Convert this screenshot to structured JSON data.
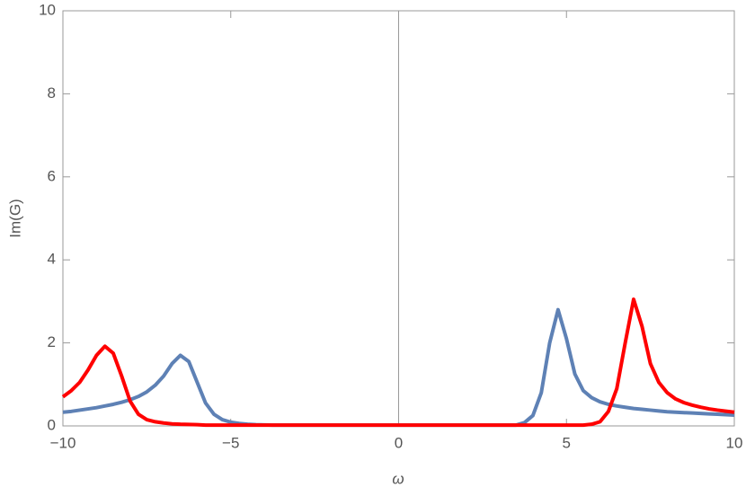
{
  "chart_data": {
    "type": "line",
    "xlabel": "ω",
    "ylabel": "Im(G)",
    "x": [
      -10,
      -9.75,
      -9.5,
      -9.25,
      -9,
      -8.75,
      -8.5,
      -8.25,
      -8,
      -7.75,
      -7.5,
      -7.25,
      -7,
      -6.75,
      -6.5,
      -6.25,
      -6,
      -5.75,
      -5.5,
      -5.25,
      -5,
      -4.75,
      -4.5,
      -4.25,
      -4,
      -3.75,
      -3.5,
      -3.25,
      -3,
      -2.75,
      -2.5,
      -2.25,
      -2,
      -1.75,
      -1.5,
      -1.25,
      -1,
      -0.75,
      -0.5,
      -0.25,
      0,
      0.25,
      0.5,
      0.75,
      1,
      1.25,
      1.5,
      1.75,
      2,
      2.25,
      2.5,
      2.75,
      3,
      3.25,
      3.5,
      3.75,
      4,
      4.25,
      4.5,
      4.75,
      5,
      5.25,
      5.5,
      5.75,
      6,
      6.25,
      6.5,
      6.75,
      7,
      7.25,
      7.5,
      7.75,
      8,
      8.25,
      8.5,
      8.75,
      9,
      9.25,
      9.5,
      9.75,
      10
    ],
    "series": [
      {
        "color": "#5e81b5",
        "values": [
          0.33,
          0.35,
          0.38,
          0.41,
          0.44,
          0.48,
          0.52,
          0.57,
          0.63,
          0.71,
          0.82,
          0.98,
          1.2,
          1.5,
          1.7,
          1.55,
          1.05,
          0.55,
          0.28,
          0.15,
          0.09,
          0.06,
          0.04,
          0.03,
          0.025,
          0.02,
          0.02,
          0.02,
          0.02,
          0.02,
          0.02,
          0.02,
          0.02,
          0.02,
          0.02,
          0.02,
          0.02,
          0.02,
          0.02,
          0.02,
          0.02,
          0.02,
          0.02,
          0.02,
          0.02,
          0.02,
          0.02,
          0.02,
          0.02,
          0.02,
          0.02,
          0.02,
          0.02,
          0.02,
          0.02,
          0.08,
          0.25,
          0.8,
          2.0,
          2.8,
          2.1,
          1.25,
          0.85,
          0.68,
          0.58,
          0.52,
          0.48,
          0.45,
          0.42,
          0.4,
          0.38,
          0.36,
          0.34,
          0.33,
          0.32,
          0.31,
          0.3,
          0.29,
          0.28,
          0.27,
          0.26
        ]
      },
      {
        "color": "#ff0000",
        "values": [
          0.7,
          0.85,
          1.05,
          1.35,
          1.7,
          1.92,
          1.75,
          1.2,
          0.6,
          0.28,
          0.15,
          0.1,
          0.07,
          0.05,
          0.04,
          0.035,
          0.03,
          0.02,
          0.02,
          0.02,
          0.02,
          0.02,
          0.02,
          0.02,
          0.02,
          0.02,
          0.02,
          0.02,
          0.02,
          0.02,
          0.02,
          0.02,
          0.02,
          0.02,
          0.02,
          0.02,
          0.02,
          0.02,
          0.02,
          0.02,
          0.02,
          0.02,
          0.02,
          0.02,
          0.02,
          0.02,
          0.02,
          0.02,
          0.02,
          0.02,
          0.02,
          0.02,
          0.02,
          0.02,
          0.02,
          0.02,
          0.02,
          0.02,
          0.02,
          0.02,
          0.02,
          0.02,
          0.02,
          0.04,
          0.1,
          0.35,
          0.9,
          2.0,
          3.05,
          2.4,
          1.5,
          1.05,
          0.8,
          0.65,
          0.56,
          0.5,
          0.45,
          0.41,
          0.38,
          0.355,
          0.33
        ]
      }
    ],
    "xlim": [
      -10,
      10
    ],
    "ylim": [
      0,
      10
    ],
    "xticks": [
      {
        "value": -10,
        "label": "−10"
      },
      {
        "value": -5,
        "label": "−5"
      },
      0,
      5,
      10
    ],
    "yticks": [
      0,
      2,
      4,
      6,
      8,
      10
    ]
  }
}
